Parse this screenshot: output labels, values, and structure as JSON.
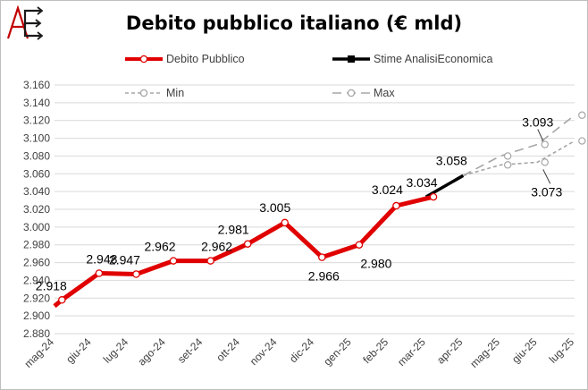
{
  "header": {
    "logo_text": "AE",
    "title": "Debito pubblico italiano (€ mld)"
  },
  "legend": [
    {
      "key": "debito",
      "label": "Debito Pubblico"
    },
    {
      "key": "stime",
      "label": "Stime AnalisiEconomica"
    },
    {
      "key": "min",
      "label": "Min"
    },
    {
      "key": "max",
      "label": "Max"
    }
  ],
  "colors": {
    "debito": "#e00000",
    "stime": "#000000",
    "min": "#a6a6a6",
    "max": "#a6a6a6",
    "logo_a": "#c00000"
  },
  "chart_data": {
    "type": "line",
    "title": "Debito pubblico italiano (€ mld)",
    "categories": [
      "mag-24",
      "giu-24",
      "lug-24",
      "ago-24",
      "set-24",
      "ott-24",
      "nov-24",
      "dic-24",
      "gen-25",
      "feb-25",
      "mar-25",
      "apr-25",
      "mag-25",
      "giu-25",
      "lug-25"
    ],
    "ylim": [
      2880,
      3160
    ],
    "ytick_step": 20,
    "ytick_labels": [
      "2.880",
      "2.900",
      "2.920",
      "2.940",
      "2.960",
      "2.980",
      "3.000",
      "3.020",
      "3.040",
      "3.060",
      "3.080",
      "3.100",
      "3.120",
      "3.140",
      "3.160"
    ],
    "grid": true,
    "legend_position": "top",
    "series": [
      {
        "name": "Debito Pubblico",
        "values": [
          2918,
          2948,
          2947,
          2962,
          2962,
          2981,
          3005,
          2966,
          2980,
          3024,
          3034,
          null,
          null,
          null,
          null
        ],
        "labels": [
          "2.918",
          "2.948",
          "2.947",
          "2.962",
          "2.962",
          "2.981",
          "3.005",
          "2.966",
          "2.980",
          "3.024",
          "3.034",
          "",
          "",
          "",
          ""
        ]
      },
      {
        "name": "Stime AnalisiEconomica",
        "values": [
          null,
          null,
          null,
          null,
          null,
          null,
          null,
          null,
          null,
          null,
          3034,
          3058,
          null,
          null,
          null
        ],
        "labels": [
          "",
          "",
          "",
          "",
          "",
          "",
          "",
          "",
          "",
          "",
          "",
          "3.058",
          "",
          "",
          ""
        ]
      },
      {
        "name": "Min",
        "values": [
          null,
          null,
          null,
          null,
          null,
          null,
          null,
          null,
          null,
          null,
          null,
          3058,
          3070,
          3073,
          3097
        ],
        "labels": [
          "",
          "",
          "",
          "",
          "",
          "",
          "",
          "",
          "",
          "",
          "",
          "",
          "",
          "3.073",
          ""
        ]
      },
      {
        "name": "Max",
        "values": [
          null,
          null,
          null,
          null,
          null,
          null,
          null,
          null,
          null,
          null,
          null,
          3058,
          3080,
          3093,
          3126
        ],
        "labels": [
          "",
          "",
          "",
          "",
          "",
          "",
          "",
          "",
          "",
          "",
          "",
          "",
          "",
          "3.093",
          ""
        ]
      }
    ]
  }
}
